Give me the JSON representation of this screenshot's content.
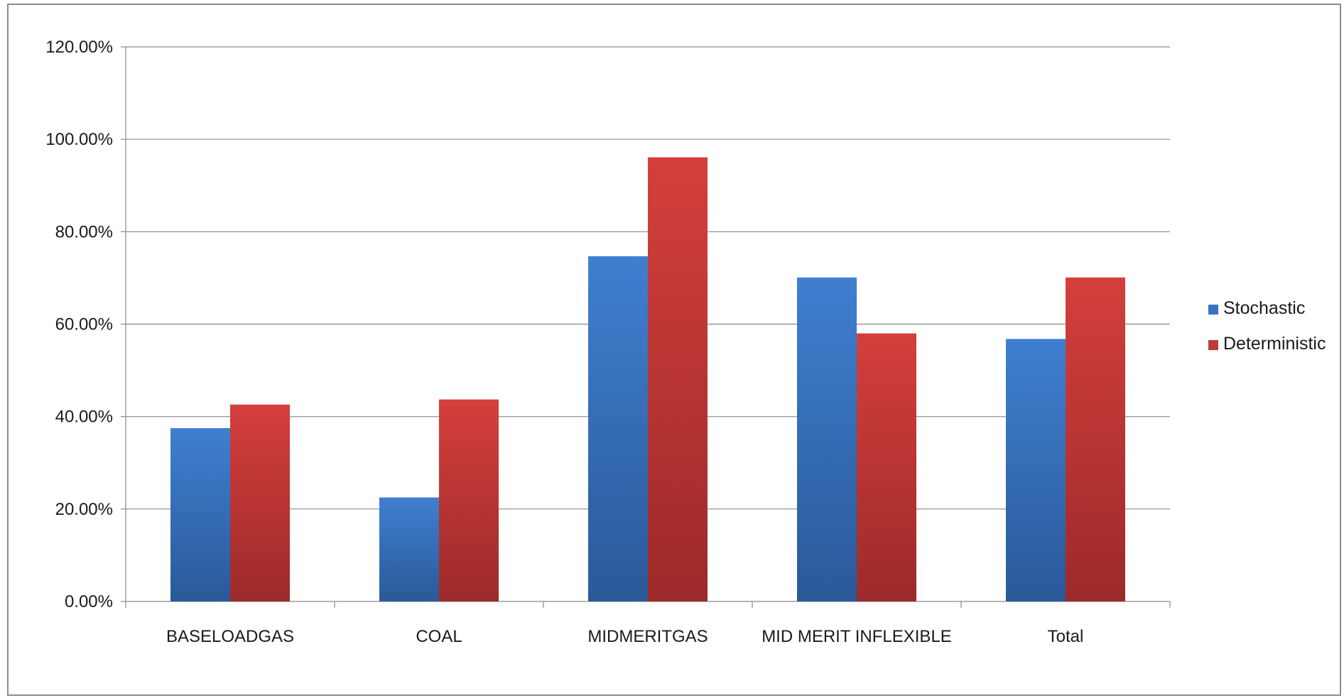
{
  "chart_data": {
    "type": "bar",
    "title": "",
    "xlabel": "",
    "ylabel": "",
    "categories": [
      "BASELOADGAS",
      "COAL",
      "MIDMERITGAS",
      "MID MERIT INFLEXIBLE",
      "Total"
    ],
    "series": [
      {
        "name": "Stochastic",
        "values": [
          37.5,
          22.5,
          74.7,
          70.1,
          56.8
        ],
        "color": "#3a73c0"
      },
      {
        "name": "Deterministic",
        "values": [
          42.6,
          43.7,
          96.1,
          58.0,
          70.1
        ],
        "color": "#c0393a"
      }
    ],
    "ylim": [
      0,
      120
    ],
    "yticks": [
      0,
      20,
      40,
      60,
      80,
      100,
      120
    ],
    "ytick_labels": [
      "0.00%",
      "20.00%",
      "40.00%",
      "60.00%",
      "80.00%",
      "100.00%",
      "120.00%"
    ],
    "grid": true,
    "legend_position": "right"
  }
}
